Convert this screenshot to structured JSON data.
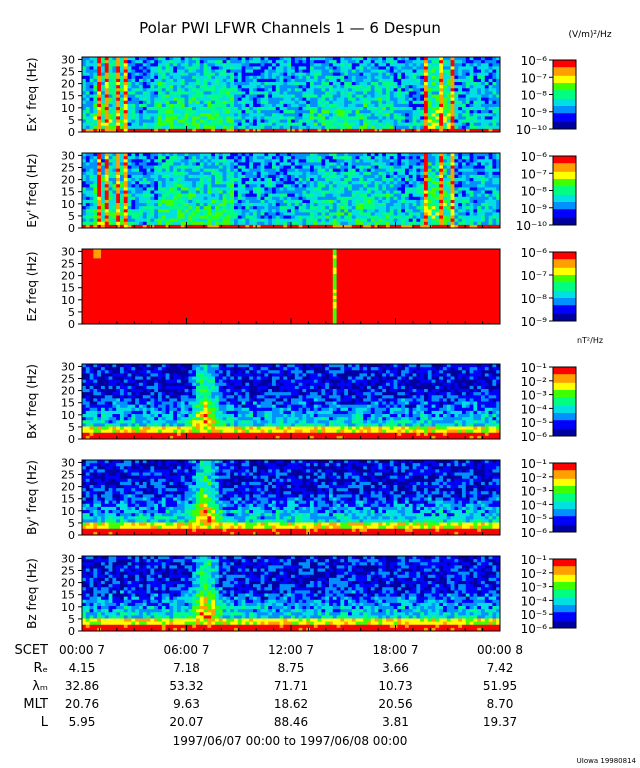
{
  "title": "Polar PWI LFWR Channels 1 — 6 Despun",
  "unit_e": "(V/m)²/Hz",
  "unit_b": "nT²/Hz",
  "credit": "UIowa 19980814",
  "date_range": "1997/06/07 00:00 to 1997/06/08 00:00",
  "colors": {
    "map": [
      "#0000a0",
      "#0000ff",
      "#0090ff",
      "#00e0e0",
      "#00ff80",
      "#40ff00",
      "#ffff00",
      "#ffa000",
      "#ff0000"
    ]
  },
  "chart_data": [
    {
      "type": "heatmap",
      "ylabel": "Ex' freq (Hz)",
      "yticks": [
        "0",
        "5",
        "10",
        "15",
        "20",
        "25",
        "30"
      ],
      "ylim": [
        0,
        31
      ],
      "xlim": [
        0,
        24
      ],
      "color_scale": "log",
      "cbar_labels": [
        "10⁻⁶",
        "10⁻⁷",
        "10⁻⁸",
        "10⁻⁹",
        "10⁻¹⁰"
      ]
    },
    {
      "type": "heatmap",
      "ylabel": "Ey' freq (Hz)",
      "yticks": [
        "0",
        "5",
        "10",
        "15",
        "20",
        "25",
        "30"
      ],
      "ylim": [
        0,
        31
      ],
      "xlim": [
        0,
        24
      ],
      "color_scale": "log",
      "cbar_labels": [
        "10⁻⁶",
        "10⁻⁷",
        "10⁻⁸",
        "10⁻⁹",
        "10⁻¹⁰"
      ]
    },
    {
      "type": "heatmap",
      "ylabel": "Ez freq (Hz)",
      "yticks": [
        "0",
        "5",
        "10",
        "15",
        "20",
        "25",
        "30"
      ],
      "ylim": [
        0,
        31
      ],
      "xlim": [
        0,
        24
      ],
      "color_scale": "log",
      "cbar_labels": [
        "10⁻⁶",
        "10⁻⁷",
        "10⁻⁸",
        "10⁻⁹"
      ]
    },
    {
      "type": "heatmap",
      "ylabel": "Bx' freq (Hz)",
      "yticks": [
        "0",
        "5",
        "10",
        "15",
        "20",
        "25",
        "30"
      ],
      "ylim": [
        0,
        31
      ],
      "xlim": [
        0,
        24
      ],
      "color_scale": "log",
      "cbar_labels": [
        "10⁻¹",
        "10⁻²",
        "10⁻³",
        "10⁻⁴",
        "10⁻⁵",
        "10⁻⁶"
      ]
    },
    {
      "type": "heatmap",
      "ylabel": "By' freq (Hz)",
      "yticks": [
        "0",
        "5",
        "10",
        "15",
        "20",
        "25",
        "30"
      ],
      "ylim": [
        0,
        31
      ],
      "xlim": [
        0,
        24
      ],
      "color_scale": "log",
      "cbar_labels": [
        "10⁻¹",
        "10⁻²",
        "10⁻³",
        "10⁻⁴",
        "10⁻⁵",
        "10⁻⁶"
      ]
    },
    {
      "type": "heatmap",
      "ylabel": "Bz freq (Hz)",
      "yticks": [
        "0",
        "5",
        "10",
        "15",
        "20",
        "25",
        "30"
      ],
      "ylim": [
        0,
        31
      ],
      "xlim": [
        0,
        24
      ],
      "color_scale": "log",
      "cbar_labels": [
        "10⁻¹",
        "10⁻²",
        "10⁻³",
        "10⁻⁴",
        "10⁻⁵",
        "10⁻⁶"
      ]
    }
  ],
  "ephemeris": {
    "rows": [
      {
        "label": "SCET",
        "values": [
          "00:00  7",
          "06:00  7",
          "12:00  7",
          "18:00  7",
          "00:00  8"
        ]
      },
      {
        "label": "Rₑ",
        "values": [
          "4.15",
          "7.18",
          "8.75",
          "3.66",
          "7.42"
        ]
      },
      {
        "label": "λₘ",
        "values": [
          "32.86",
          "53.32",
          "71.71",
          "10.73",
          "51.95"
        ]
      },
      {
        "label": "MLT",
        "values": [
          "20.76",
          "9.63",
          "18.62",
          "20.56",
          "8.70"
        ]
      },
      {
        "label": "L",
        "values": [
          "5.95",
          "20.07",
          "88.46",
          "3.81",
          "19.37"
        ]
      }
    ]
  }
}
